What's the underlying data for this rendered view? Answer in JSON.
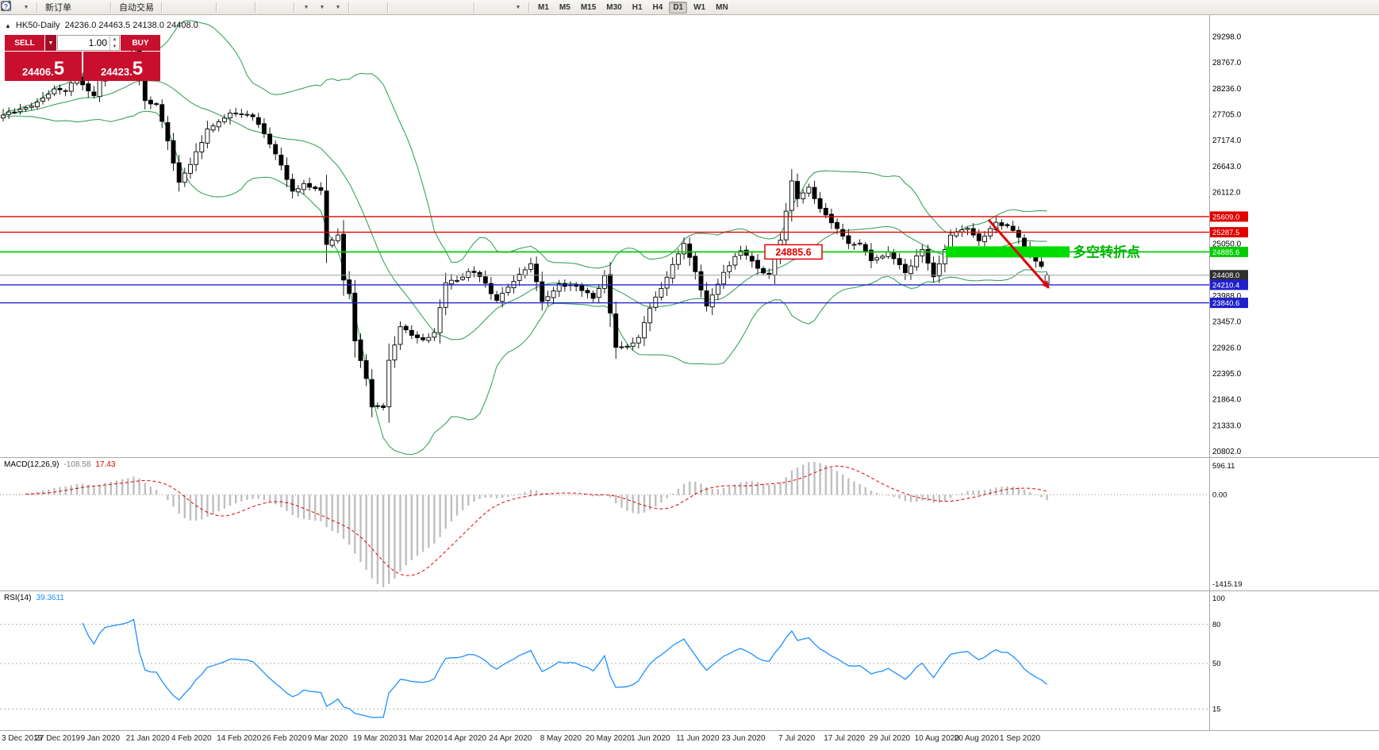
{
  "toolbar": {
    "items": [
      {
        "t": "icon",
        "name": "new-chart-icon"
      },
      {
        "t": "icon",
        "name": "profiles-icon",
        "caret": true
      },
      {
        "t": "sep"
      },
      {
        "t": "button",
        "name": "new-order-button",
        "icon": "new-order-plus-icon",
        "label": "新订单"
      },
      {
        "t": "icon",
        "name": "metaeditor-icon"
      },
      {
        "t": "icon",
        "name": "alerts-icon"
      },
      {
        "t": "sep"
      },
      {
        "t": "button",
        "name": "autotrading-button",
        "icon": "autotrading-play-icon",
        "label": "自动交易"
      },
      {
        "t": "sep"
      },
      {
        "t": "icon",
        "name": "bar-chart-icon"
      },
      {
        "t": "icon",
        "name": "candlestick-chart-icon"
      },
      {
        "t": "icon",
        "name": "line-chart-icon"
      },
      {
        "t": "sep"
      },
      {
        "t": "icon",
        "name": "zoom-in-icon"
      },
      {
        "t": "icon",
        "name": "zoom-out-icon"
      },
      {
        "t": "sep"
      },
      {
        "t": "icon",
        "name": "grid-icon"
      },
      {
        "t": "icon",
        "name": "tile-windows-icon"
      },
      {
        "t": "sep"
      },
      {
        "t": "icon",
        "name": "indicators-icon",
        "caret": true
      },
      {
        "t": "icon",
        "name": "periods-icon",
        "caret": true
      },
      {
        "t": "icon",
        "name": "templates-icon",
        "caret": true
      },
      {
        "t": "sep"
      },
      {
        "t": "icon",
        "name": "cursor-icon"
      },
      {
        "t": "icon",
        "name": "crosshair-icon"
      },
      {
        "t": "sep"
      },
      {
        "t": "icon",
        "name": "vertical-line-icon"
      },
      {
        "t": "icon",
        "name": "horizontal-line-icon"
      },
      {
        "t": "icon",
        "name": "trendline-icon"
      },
      {
        "t": "icon",
        "name": "channel-icon"
      },
      {
        "t": "icon",
        "name": "fibonacci-icon"
      },
      {
        "t": "sep"
      },
      {
        "t": "icon",
        "name": "text-icon"
      },
      {
        "t": "icon",
        "name": "label-icon"
      },
      {
        "t": "icon",
        "name": "arrows-icon",
        "caret": true
      },
      {
        "t": "sep"
      },
      {
        "t": "tfgroup"
      },
      {
        "t": "spacer"
      },
      {
        "t": "icon",
        "name": "window-cascade-icon"
      },
      {
        "t": "icon",
        "name": "help-icon"
      }
    ],
    "timeframes": [
      "M1",
      "M5",
      "M15",
      "M30",
      "H1",
      "H4",
      "D1",
      "W1",
      "MN"
    ],
    "active_timeframe": "D1"
  },
  "chart": {
    "symbol_period": "HK50-Daily",
    "ohlc_text": "24236.0 24463.5 24138.0 24408.0"
  },
  "trade_panel": {
    "sell_label": "SELL",
    "buy_label": "BUY",
    "volume": "1.00",
    "sell_price_main": "24406.",
    "sell_price_frac": "5",
    "buy_price_main": "24423.",
    "buy_price_frac": "5"
  },
  "indicators": {
    "macd": {
      "name": "MACD(12,26,9)",
      "value_main": "-108.58",
      "value_signal": "17.43"
    },
    "rsi": {
      "name": "RSI(14)",
      "value": "39.3611"
    }
  },
  "chart_data": {
    "type": "candlestick",
    "symbol": "HK50",
    "period": "Daily",
    "bars": 185,
    "anchor_idx": [
      0,
      5,
      9,
      11,
      13,
      16,
      18,
      22,
      23,
      25,
      27,
      29,
      31,
      33,
      36,
      40,
      44,
      46,
      48,
      51,
      53,
      56,
      57,
      59,
      60,
      61,
      62,
      64,
      65,
      67,
      68,
      70,
      72,
      74,
      76,
      78,
      80,
      82,
      84,
      87,
      90,
      93,
      95,
      98,
      101,
      104,
      106,
      108,
      110,
      112,
      114,
      117,
      120,
      122,
      124,
      127,
      130,
      133,
      135,
      137,
      139,
      140,
      142,
      144,
      146,
      149,
      151,
      153,
      156,
      159,
      162,
      164,
      167,
      170,
      172,
      175,
      177,
      179,
      180,
      181,
      182,
      183,
      184
    ],
    "anchor_close": [
      27688,
      27871,
      28225,
      28189,
      28451,
      28087,
      28638,
      28883,
      29056,
      27985,
      27909,
      27160,
      26312,
      26675,
      27404,
      27730,
      27655,
      27308,
      26893,
      26129,
      26284,
      26146,
      25040,
      25231,
      24309,
      24032,
      23063,
      22291,
      21709,
      21696,
      22663,
      23352,
      23175,
      23085,
      23236,
      24253,
      24300,
      24481,
      24380,
      23893,
      24280,
      24643,
      23869,
      24230,
      24180,
      23935,
      24399,
      22930,
      22952,
      23132,
      23732,
      24366,
      25057,
      24480,
      23776,
      24465,
      24907,
      24550,
      24427,
      25124,
      26339,
      25975,
      26210,
      25772,
      25481,
      25057,
      25057,
      24705,
      24883,
      24458,
      24930,
      24377,
      25230,
      25367,
      25114,
      25491,
      25422,
      25184,
      24970,
      24823,
      24695,
      24590,
      24408
    ],
    "last_ohlc": [
      24236.0,
      24463.5,
      24138.0,
      24408.0
    ],
    "overlays": {
      "bollinger": {
        "period": 20,
        "deviation": 2,
        "color": "#3aa35f"
      }
    },
    "levels": [
      {
        "value": 25609.0,
        "color": "#e00000",
        "line_color": "#e00000"
      },
      {
        "value": 25287.5,
        "color": "#e00000",
        "line_color": "#e00000"
      },
      {
        "value": 24885.6,
        "color": "#00cc00",
        "line_color": "#00cc00"
      },
      {
        "value": 24408.0,
        "color": "#2f2f2f",
        "line_color": "#9b9b9b"
      },
      {
        "value": 24210.4,
        "color": "#2020cc",
        "line_color": "#2020cc"
      },
      {
        "value": 23840.6,
        "color": "#2020cc",
        "line_color": "#2020cc"
      }
    ],
    "y_ticks": [
      "29298.0",
      "28767.0",
      "28236.0",
      "27705.0",
      "27174.0",
      "26643.0",
      "26112.0",
      "25050.0",
      "23988.0",
      "23457.0",
      "22926.0",
      "22395.0",
      "21864.0",
      "21333.0",
      "20802.0"
    ],
    "x_ticks": [
      {
        "label": "3 Dec 2019",
        "i": 0
      },
      {
        "label": "27 Dec 2019",
        "i": 9
      },
      {
        "label": "9 Jan 2020",
        "i": 17
      },
      {
        "label": "21 Jan 2020",
        "i": 25
      },
      {
        "label": "4 Feb 2020",
        "i": 33
      },
      {
        "label": "14 Feb 2020",
        "i": 41
      },
      {
        "label": "26 Feb 2020",
        "i": 49
      },
      {
        "label": "9 Mar 2020",
        "i": 57
      },
      {
        "label": "19 Mar 2020",
        "i": 65
      },
      {
        "label": "31 Mar 2020",
        "i": 73
      },
      {
        "label": "14 Apr 2020",
        "i": 81
      },
      {
        "label": "24 Apr 2020",
        "i": 89
      },
      {
        "label": "8 May 2020",
        "i": 98
      },
      {
        "label": "20 May 2020",
        "i": 106
      },
      {
        "label": "1 Jun 2020",
        "i": 114
      },
      {
        "label": "11 Jun 2020",
        "i": 122
      },
      {
        "label": "23 Jun 2020",
        "i": 130
      },
      {
        "label": "7 Jul 2020",
        "i": 140
      },
      {
        "label": "17 Jul 2020",
        "i": 148
      },
      {
        "label": "29 Jul 2020",
        "i": 156
      },
      {
        "label": "10 Aug 2020",
        "i": 164
      },
      {
        "label": "20 Aug 2020",
        "i": 171
      },
      {
        "label": "1 Sep 2020",
        "i": 179
      }
    ],
    "annotations": {
      "price_callout": "24885.6",
      "zone_text": "多空转折点",
      "zone_level": 24885.6,
      "zone_color": "#00dc00",
      "callout_color": "#e60000",
      "arrow_color": "#dd0000",
      "zone_text_color": "#00b400"
    },
    "macd": {
      "label": "MACD(12,26,9)",
      "scale_labels": [
        "596.11",
        "0.00",
        "-1415.19"
      ],
      "histogram_color": "#bfbfbf",
      "signal_color": "#e00000"
    },
    "rsi": {
      "label": "RSI(14)",
      "line_color": "#1e90ff",
      "y_ticks": [
        100,
        80,
        50,
        15
      ],
      "levels": [
        80,
        50,
        15
      ]
    }
  }
}
